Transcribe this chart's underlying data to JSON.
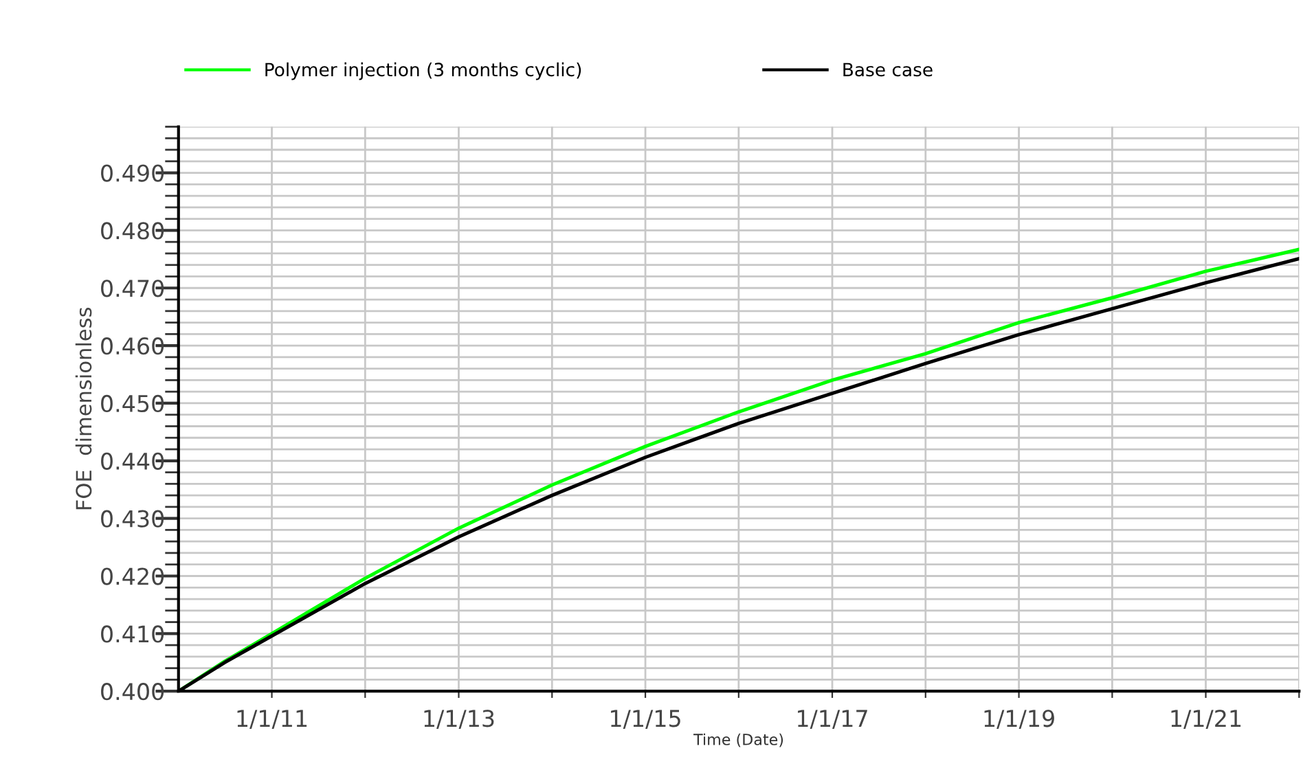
{
  "chart_data": {
    "type": "line",
    "xlabel": "Time (Date)",
    "ylabel": "FOE  dimensionless",
    "x": [
      "2010-01-01",
      "2010-07-01",
      "2011-01-01",
      "2012-01-01",
      "2013-01-01",
      "2014-01-01",
      "2015-01-01",
      "2016-01-01",
      "2017-01-01",
      "2018-01-01",
      "2019-01-01",
      "2020-01-01",
      "2021-01-01",
      "2022-01-01"
    ],
    "series": [
      {
        "name": "Polymer injection (3 months cyclic)",
        "color": "#00ff00",
        "values": [
          0.4,
          0.4052,
          0.41,
          0.4196,
          0.4283,
          0.4358,
          0.4425,
          0.4485,
          0.454,
          0.4586,
          0.464,
          0.4683,
          0.4729,
          0.4767
        ]
      },
      {
        "name": "Base case",
        "color": "#000000",
        "values": [
          0.4,
          0.405,
          0.4096,
          0.4187,
          0.4268,
          0.434,
          0.4406,
          0.4465,
          0.4517,
          0.4569,
          0.4619,
          0.4664,
          0.4709,
          0.4751
        ]
      }
    ],
    "xlim": [
      "2010-01-01",
      "2022-01-01"
    ],
    "xticks": [
      {
        "value": "2011-01-01",
        "label": "1/1/11"
      },
      {
        "value": "2012-01-01",
        "label": null
      },
      {
        "value": "2013-01-01",
        "label": "1/1/13"
      },
      {
        "value": "2014-01-01",
        "label": null
      },
      {
        "value": "2015-01-01",
        "label": "1/1/15"
      },
      {
        "value": "2016-01-01",
        "label": null
      },
      {
        "value": "2017-01-01",
        "label": "1/1/17"
      },
      {
        "value": "2018-01-01",
        "label": null
      },
      {
        "value": "2019-01-01",
        "label": "1/1/19"
      },
      {
        "value": "2020-01-01",
        "label": null
      },
      {
        "value": "2021-01-01",
        "label": "1/1/21"
      },
      {
        "value": "2022-01-01",
        "label": null
      }
    ],
    "ylim": [
      0.4,
      0.498
    ],
    "yticks": [
      {
        "value": 0.4,
        "label": "0.400"
      },
      {
        "value": 0.402,
        "label": null
      },
      {
        "value": 0.404,
        "label": null
      },
      {
        "value": 0.406,
        "label": null
      },
      {
        "value": 0.408,
        "label": null
      },
      {
        "value": 0.41,
        "label": "0.410"
      },
      {
        "value": 0.412,
        "label": null
      },
      {
        "value": 0.414,
        "label": null
      },
      {
        "value": 0.416,
        "label": null
      },
      {
        "value": 0.418,
        "label": null
      },
      {
        "value": 0.42,
        "label": "0.420"
      },
      {
        "value": 0.422,
        "label": null
      },
      {
        "value": 0.424,
        "label": null
      },
      {
        "value": 0.426,
        "label": null
      },
      {
        "value": 0.428,
        "label": null
      },
      {
        "value": 0.43,
        "label": "0.430"
      },
      {
        "value": 0.432,
        "label": null
      },
      {
        "value": 0.434,
        "label": null
      },
      {
        "value": 0.436,
        "label": null
      },
      {
        "value": 0.438,
        "label": null
      },
      {
        "value": 0.44,
        "label": "0.440"
      },
      {
        "value": 0.442,
        "label": null
      },
      {
        "value": 0.444,
        "label": null
      },
      {
        "value": 0.446,
        "label": null
      },
      {
        "value": 0.448,
        "label": null
      },
      {
        "value": 0.45,
        "label": "0.450"
      },
      {
        "value": 0.452,
        "label": null
      },
      {
        "value": 0.454,
        "label": null
      },
      {
        "value": 0.456,
        "label": null
      },
      {
        "value": 0.458,
        "label": null
      },
      {
        "value": 0.46,
        "label": "0.460"
      },
      {
        "value": 0.462,
        "label": null
      },
      {
        "value": 0.464,
        "label": null
      },
      {
        "value": 0.466,
        "label": null
      },
      {
        "value": 0.468,
        "label": null
      },
      {
        "value": 0.47,
        "label": "0.470"
      },
      {
        "value": 0.472,
        "label": null
      },
      {
        "value": 0.474,
        "label": null
      },
      {
        "value": 0.476,
        "label": null
      },
      {
        "value": 0.478,
        "label": null
      },
      {
        "value": 0.48,
        "label": "0.480"
      },
      {
        "value": 0.482,
        "label": null
      },
      {
        "value": 0.484,
        "label": null
      },
      {
        "value": 0.486,
        "label": null
      },
      {
        "value": 0.488,
        "label": null
      },
      {
        "value": 0.49,
        "label": "0.490"
      },
      {
        "value": 0.492,
        "label": null
      },
      {
        "value": 0.494,
        "label": null
      },
      {
        "value": 0.496,
        "label": null
      },
      {
        "value": 0.498,
        "label": null
      }
    ],
    "grid": true,
    "legend": "top",
    "marker": "none",
    "line_style": "solid"
  }
}
